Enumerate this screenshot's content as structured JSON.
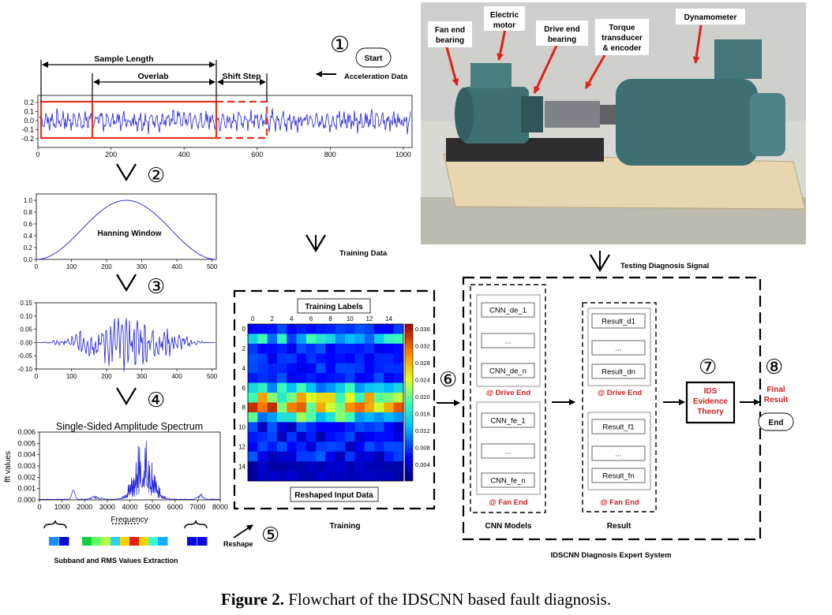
{
  "caption": {
    "label": "Figure 2.",
    "text": " Flowchart of the IDSCNN based fault diagnosis."
  },
  "colors": {
    "signal": "#1a1adc",
    "frame": "#e8331f",
    "red_text": "#cc1f1f",
    "equipment": "#3e6f72",
    "base": "#e7d6b0"
  },
  "steps": [
    {
      "num": "①",
      "icon": "circled-1"
    },
    {
      "num": "②",
      "icon": "circled-2"
    },
    {
      "num": "③",
      "icon": "circled-3"
    },
    {
      "num": "④",
      "icon": "circled-4"
    },
    {
      "num": "⑤",
      "icon": "circled-5"
    },
    {
      "num": "⑥",
      "icon": "circled-6"
    },
    {
      "num": "⑦",
      "icon": "circled-7"
    },
    {
      "num": "⑧",
      "icon": "circled-8"
    }
  ],
  "start_label": "Start",
  "end_label": "End",
  "acceleration_data": "Acceleration Data",
  "training_data": "Training Data",
  "testing_signal": "Testing Diagnosis Signal",
  "segmentation": {
    "sample_length": "Sample Length",
    "overlap": "Overlab",
    "shift_step": "Shift Step",
    "y_ticks": [
      "0.2",
      "0.1",
      "0.0",
      "-0.1",
      "-0.2"
    ],
    "x_ticks": [
      "0",
      "200",
      "400",
      "600",
      "800",
      "1000"
    ]
  },
  "hanning": {
    "title": "Hanning Window",
    "y_ticks": [
      "1.0",
      "0.8",
      "0.6",
      "0.4",
      "0.2",
      "0.0"
    ],
    "x_ticks": [
      "0",
      "100",
      "200",
      "300",
      "400",
      "500"
    ]
  },
  "windowed": {
    "y_ticks": [
      "0.15",
      "0.10",
      "0.05",
      "0.00",
      "-0.05",
      "-0.10"
    ],
    "x_ticks": [
      "0",
      "100",
      "200",
      "300",
      "400",
      "500"
    ]
  },
  "spectrum": {
    "title": "Single-Sided Amplitude Spectrum",
    "ylabel": "fft values",
    "xlabel": "Frequency",
    "y_ticks": [
      "0.006",
      "0.005",
      "0.004",
      "0.003",
      "0.002",
      "0.001",
      "0.000"
    ],
    "x_ticks": [
      "0",
      "1000",
      "2000",
      "3000",
      "4000",
      "5000",
      "6000",
      "7000",
      "8000"
    ]
  },
  "subband": {
    "dots": "·········",
    "label": "Subband and RMS Values Extraction"
  },
  "reshape_label": "Reshape",
  "training": {
    "labels_title": "Training Labels",
    "input_title": "Reshaped Input Data",
    "section_label": "Training",
    "x_ticks": [
      "0",
      "2",
      "4",
      "6",
      "8",
      "10",
      "12",
      "14"
    ],
    "y_ticks": [
      "0",
      "2",
      "4",
      "6",
      "8",
      "10",
      "12",
      "14"
    ],
    "colorbar_ticks": [
      "0.036",
      "0.032",
      "0.028",
      "0.024",
      "0.020",
      "0.016",
      "0.012",
      "0.008",
      "0.004"
    ]
  },
  "system": {
    "title": "IDSCNN Diagnosis Expert System",
    "cnn_models_label": "CNN Models",
    "result_label": "Result",
    "cnn_de": [
      "CNN_de_1",
      "...",
      "CNN_de_n"
    ],
    "cnn_fe": [
      "CNN_fe_1",
      "...",
      "CNN_fe_n"
    ],
    "res_d": [
      "Result_d1",
      "...",
      "Result_dn"
    ],
    "res_f": [
      "Result_f1",
      "...",
      "Result_fn"
    ],
    "drive_end": "@ Drive End",
    "fan_end": "@ Fan End",
    "ids_line1": "IDS",
    "ids_line2": "Evidence",
    "ids_line3": "Theory",
    "final_line1": "Final",
    "final_line2": "Result"
  },
  "photo_labels": {
    "fan_end_1": "Fan end",
    "fan_end_2": "bearing",
    "motor_1": "Electric",
    "motor_2": "motor",
    "drive_1": "Drive end",
    "drive_2": "bearing",
    "torque_1": "Torque",
    "torque_2": "transducer",
    "torque_3": "& encoder",
    "dyno": "Dynamometer"
  }
}
